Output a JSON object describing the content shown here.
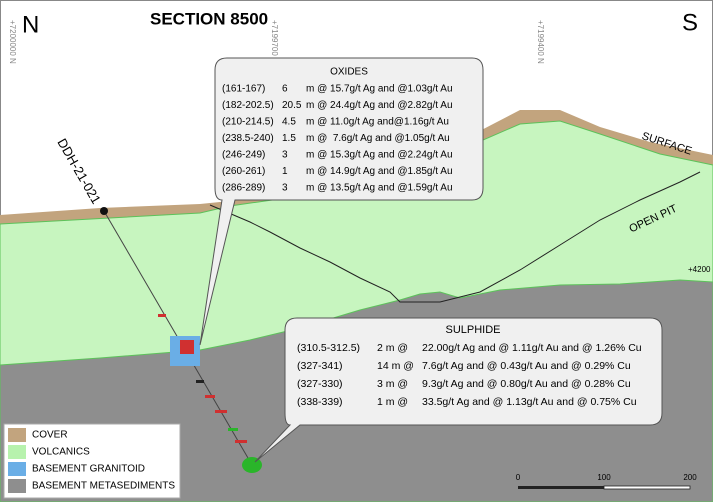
{
  "header": {
    "north": "N",
    "south": "S",
    "title": "SECTION 8500"
  },
  "northings": [
    "+7200000 N",
    "+7199700 N",
    "+7199400 N"
  ],
  "labels": {
    "drillhole": "DDH-21-021",
    "surface": "SURFACE",
    "open_pit": "OPEN PIT",
    "elevation": "+4200"
  },
  "oxides": {
    "title": "OXIDES",
    "rows": [
      [
        "(161-167)",
        "6",
        "m @ 15.7g/t Ag and @1.03g/t Au"
      ],
      [
        "(182-202.5)",
        "20.5",
        "m @ 24.4g/t Ag and @2.82g/t Au"
      ],
      [
        "(210-214.5)",
        "4.5",
        "m @ 11.0g/t Ag and@1.16g/t Au"
      ],
      [
        "(238.5-240)",
        "1.5",
        "m @  7.6g/t Ag and @1.05g/t Au"
      ],
      [
        "(246-249)",
        "3",
        "m @ 15.3g/t Ag and @2.24g/t Au"
      ],
      [
        "(260-261)",
        "1",
        "m @ 14.9g/t Ag and @1.85g/t Au"
      ],
      [
        "(286-289)",
        "3",
        "m @ 13.5g/t Ag and @1.59g/t Au"
      ]
    ]
  },
  "sulphide": {
    "title": "SULPHIDE",
    "rows": [
      [
        "(310.5-312.5)",
        "2 m @",
        "22.00g/t Ag and @ 1.11g/t Au and @ 1.26% Cu"
      ],
      [
        "(327-341)",
        "14 m @",
        "7.6g/t Ag and @ 0.43g/t Au and @ 0.29% Cu"
      ],
      [
        "(327-330)",
        "3 m @",
        "9.3g/t Ag and @ 0.80g/t Au and @ 0.28% Cu"
      ],
      [
        "(338-339)",
        "1 m @",
        "33.5g/t Ag and @ 1.13g/t Au and @ 0.75% Cu"
      ]
    ]
  },
  "legend": [
    "COVER",
    "VOLCANICS",
    "BASEMENT GRANITOID",
    "BASEMENT METASEDIMENTS"
  ],
  "scale": [
    "0",
    "100",
    "200"
  ]
}
